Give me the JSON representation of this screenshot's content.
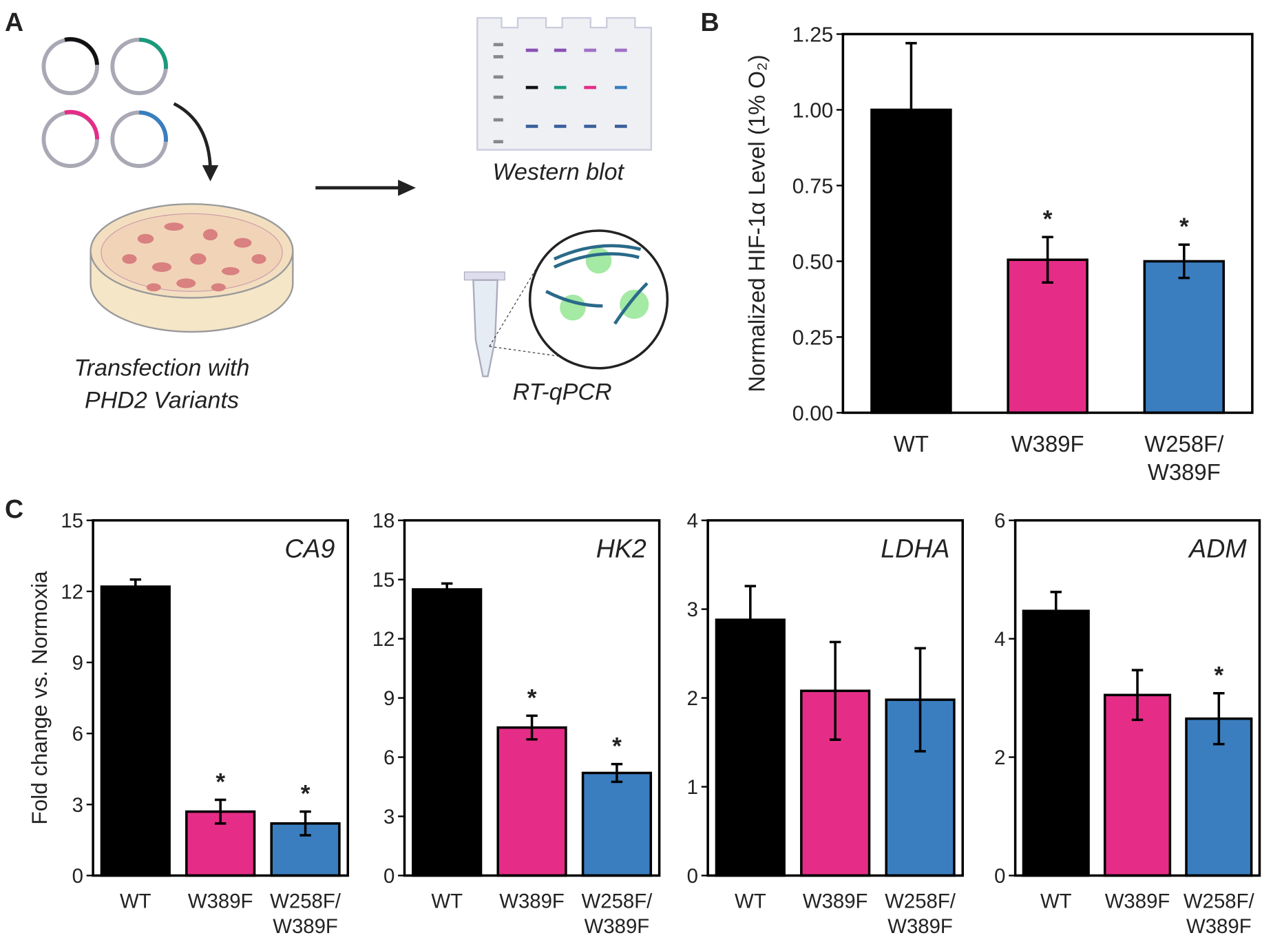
{
  "panel_labels": [
    "A",
    "B",
    "C"
  ],
  "panel_a": {
    "western_blot": "Western blot",
    "rt_qpcr": "RT-qPCR",
    "transfection": [
      "Transfection with",
      "PHD2 Variants"
    ]
  },
  "chart_data": [
    {
      "type": "bar",
      "ylabel": "Normalized HIF-1α Level (1% O₂)",
      "categories": [
        "WT",
        "W389F",
        "W258F/\nW389F"
      ],
      "values": [
        1.0,
        0.505,
        0.5
      ],
      "errors": [
        0.22,
        0.075,
        0.055
      ],
      "colors": [
        "#000000",
        "#e52d87",
        "#3a7ebf"
      ],
      "ylim": [
        0,
        1.25
      ],
      "yticks": [
        {
          "value": 0,
          "label": "0.00"
        },
        {
          "value": 0.25,
          "label": "0.25"
        },
        {
          "value": 0.5,
          "label": "0.50"
        },
        {
          "value": 0.75,
          "label": "0.75"
        },
        {
          "value": 1,
          "label": "1.00"
        },
        {
          "value": 1.25,
          "label": "1.25"
        }
      ],
      "annotations": [
        {
          "text": "*",
          "category": "W389F"
        },
        {
          "text": "*",
          "category": "W258F/\nW389F"
        }
      ]
    },
    {
      "type": "bar",
      "title": "CA9",
      "ylabel": "Fold change vs. Normoxia",
      "categories": [
        "WT",
        "W389F",
        "W258F/\nW389F"
      ],
      "values": [
        12.2,
        2.7,
        2.2
      ],
      "errors": [
        0.3,
        0.5,
        0.5
      ],
      "colors": [
        "#000000",
        "#e52d87",
        "#3a7ebf"
      ],
      "ylim": [
        0,
        15
      ],
      "yticks": [
        0,
        3,
        6,
        9,
        12,
        15
      ],
      "annotations": [
        {
          "text": "*",
          "category": "W389F"
        },
        {
          "text": "*",
          "category": "W258F/\nW389F"
        }
      ]
    },
    {
      "type": "bar",
      "title": "HK2",
      "categories": [
        "WT",
        "W389F",
        "W258F/\nW389F"
      ],
      "values": [
        14.5,
        7.5,
        5.2
      ],
      "errors": [
        0.3,
        0.6,
        0.45
      ],
      "colors": [
        "#000000",
        "#e52d87",
        "#3a7ebf"
      ],
      "ylim": [
        0,
        18
      ],
      "yticks": [
        0,
        3,
        6,
        9,
        12,
        15,
        18
      ],
      "annotations": [
        {
          "text": "*",
          "category": "W389F"
        },
        {
          "text": "*",
          "category": "W258F/\nW389F"
        }
      ]
    },
    {
      "type": "bar",
      "title": "LDHA",
      "categories": [
        "WT",
        "W389F",
        "W258F/\nW389F"
      ],
      "values": [
        2.88,
        2.08,
        1.98
      ],
      "errors": [
        0.38,
        0.55,
        0.58
      ],
      "colors": [
        "#000000",
        "#e52d87",
        "#3a7ebf"
      ],
      "ylim": [
        0,
        4
      ],
      "yticks": [
        0,
        1,
        2,
        3,
        4
      ]
    },
    {
      "type": "bar",
      "title": "ADM",
      "categories": [
        "WT",
        "W389F",
        "W258F/\nW389F"
      ],
      "values": [
        4.47,
        3.05,
        2.65
      ],
      "errors": [
        0.32,
        0.42,
        0.43
      ],
      "colors": [
        "#000000",
        "#e52d87",
        "#3a7ebf"
      ],
      "ylim": [
        0,
        6
      ],
      "yticks": [
        0,
        2,
        4,
        6
      ],
      "annotations": [
        {
          "text": "*",
          "category": "W258F/\nW389F"
        }
      ]
    }
  ]
}
